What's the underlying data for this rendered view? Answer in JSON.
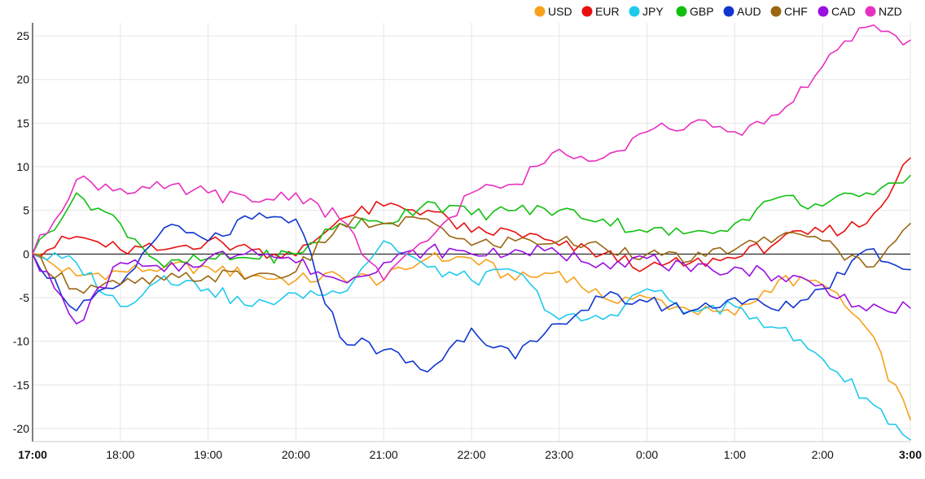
{
  "chart_data": {
    "type": "line",
    "title": "",
    "xlabel": "",
    "ylabel": "",
    "ylim": [
      -21.5,
      26.5
    ],
    "grid": true,
    "legend_position": "top-right",
    "x_ticks": [
      "17:00",
      "18:00",
      "19:00",
      "20:00",
      "21:00",
      "22:00",
      "23:00",
      "0:00",
      "1:00",
      "2:00",
      "3:00"
    ],
    "bold_x_ticks": [
      "17:00",
      "3:00"
    ],
    "y_ticks": [
      25,
      20,
      15,
      10,
      5,
      0,
      -5,
      -10,
      -15,
      -20
    ],
    "x_hours": [
      0,
      0.5,
      1,
      1.5,
      2,
      2.5,
      3,
      3.5,
      4,
      4.5,
      5,
      5.5,
      6,
      6.5,
      7,
      7.5,
      8,
      8.5,
      9,
      9.5,
      10
    ],
    "series": [
      {
        "name": "USD",
        "color": "#f7a11a",
        "values": [
          0,
          -2.5,
          -2,
          -1.5,
          -1.5,
          -2.5,
          -3,
          -2.5,
          -3,
          -0.5,
          -0.5,
          -3,
          -2,
          -5,
          -5,
          -6.5,
          -7,
          -3,
          -3.5,
          -8.5,
          -19
        ]
      },
      {
        "name": "EUR",
        "color": "#e8100e",
        "values": [
          0,
          2,
          0.5,
          0.5,
          1.5,
          0.5,
          -0.2,
          4,
          5.5,
          5,
          2.5,
          2.5,
          1,
          0,
          -1.5,
          -1,
          -0.5,
          1.5,
          2.5,
          3.5,
          11
        ]
      },
      {
        "name": "JPY",
        "color": "#1fcaec",
        "values": [
          0,
          -1,
          -6,
          -2.5,
          -4,
          -6,
          -4.5,
          -4.5,
          1.5,
          -1.5,
          -3,
          -2,
          -7.5,
          -7.5,
          -4,
          -6.5,
          -6,
          -8.5,
          -12,
          -16.5,
          -21.3
        ]
      },
      {
        "name": "GBP",
        "color": "#10c010",
        "values": [
          0,
          7,
          3.5,
          -1.5,
          -0.5,
          -0.5,
          0,
          3.5,
          3.5,
          6,
          4.5,
          5,
          5,
          4,
          2.5,
          2.5,
          3.5,
          6.5,
          5.5,
          7,
          9
        ]
      },
      {
        "name": "AUD",
        "color": "#1036d0",
        "values": [
          0,
          -6.5,
          -3.5,
          3,
          1.5,
          4,
          4,
          -9.5,
          -11,
          -13.5,
          -8.5,
          -12,
          -8,
          -5,
          -5.5,
          -6.5,
          -5,
          -6.5,
          -4,
          0.5,
          -1.8
        ]
      },
      {
        "name": "CHF",
        "color": "#9a6610",
        "values": [
          0,
          -4,
          -3.5,
          -3,
          -2.5,
          -2.5,
          -2,
          3.5,
          3.5,
          4,
          1,
          1.5,
          1.5,
          0.8,
          0,
          -0.8,
          0.5,
          2,
          1.5,
          -1.5,
          3.5
        ]
      },
      {
        "name": "CAD",
        "color": "#9a10e0",
        "values": [
          0,
          -8,
          -1,
          -2,
          -0.5,
          0.5,
          -1,
          -3,
          -1,
          0.5,
          0,
          0.5,
          0,
          -1,
          -0.5,
          -2,
          -1.5,
          -2.5,
          -3.5,
          -6.5,
          -6.2
        ]
      },
      {
        "name": "NZD",
        "color": "#e830c0",
        "values": [
          0,
          8.5,
          7.5,
          7.5,
          7,
          6,
          7,
          4,
          -3,
          1.5,
          7,
          8,
          12,
          11,
          14,
          15,
          14,
          16,
          21.5,
          26,
          24.5
        ]
      }
    ]
  }
}
